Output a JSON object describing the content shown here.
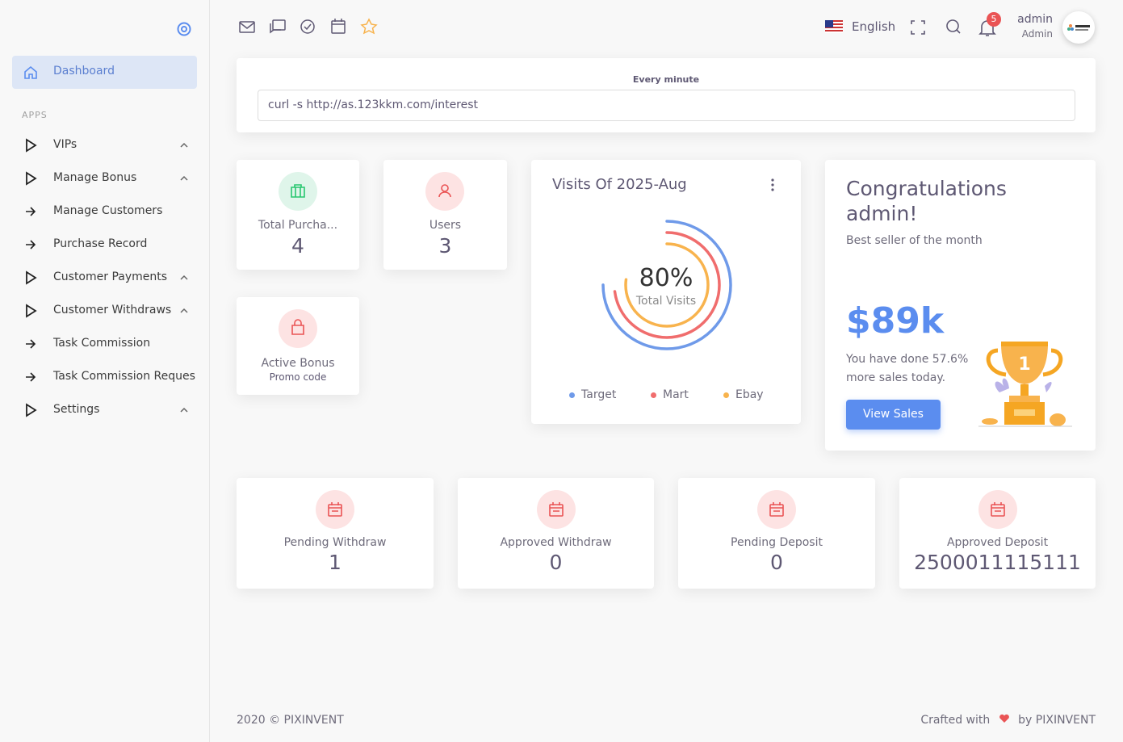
{
  "sidebar": {
    "active": "Dashboard",
    "section": "APPS",
    "items": [
      {
        "label": "VIPs",
        "expandable": true
      },
      {
        "label": "Manage Bonus",
        "expandable": true
      },
      {
        "label": "Manage Customers",
        "expandable": false
      },
      {
        "label": "Purchase Record",
        "expandable": false
      },
      {
        "label": "Customer Payments",
        "expandable": true
      },
      {
        "label": "Customer Withdraws",
        "expandable": true
      },
      {
        "label": "Task Commission",
        "expandable": false
      },
      {
        "label": "Task Commission Reques",
        "expandable": false
      },
      {
        "label": "Settings",
        "expandable": true
      }
    ]
  },
  "header": {
    "language": "English",
    "notifications": 5,
    "user_name": "admin",
    "user_role": "Admin"
  },
  "cron": {
    "label": "Every minute",
    "command": "curl -s http://as.123kkm.com/interest"
  },
  "stats": [
    {
      "label": "Total Purcha...",
      "value": 4
    },
    {
      "label": "Users",
      "value": 3
    }
  ],
  "active_bonus": {
    "label": "Active Bonus",
    "sub": "Promo code"
  },
  "chart_data": {
    "type": "radial",
    "title": "Visits Of 2025-Aug",
    "total": {
      "value": 80,
      "label": "80%"
    },
    "total_label": "Total Visits",
    "ylim": [
      0,
      100
    ],
    "series": [
      {
        "name": "Target",
        "color": "#6f9ae9",
        "values": [
          75
        ]
      },
      {
        "name": "Mart",
        "color": "#f06d6d",
        "values": [
          73
        ]
      },
      {
        "name": "Ebay",
        "color": "#f8b34d",
        "values": [
          77
        ]
      }
    ]
  },
  "congrats": {
    "title": "Congratulations admin!",
    "subtitle": "Best seller of the month",
    "amount": "$89k",
    "text": "You have done 57.6% more sales today.",
    "button": "View Sales"
  },
  "summary": [
    {
      "label": "Pending Withdraw",
      "value": 1
    },
    {
      "label": "Approved Withdraw",
      "value": 0
    },
    {
      "label": "Pending Deposit",
      "value": 0
    },
    {
      "label": "Approved Deposit",
      "value": 2500011115111
    }
  ],
  "footer": {
    "left": "2020 © PIXINVENT",
    "right_pre": "Crafted with",
    "right_post": "by PIXINVENT"
  }
}
